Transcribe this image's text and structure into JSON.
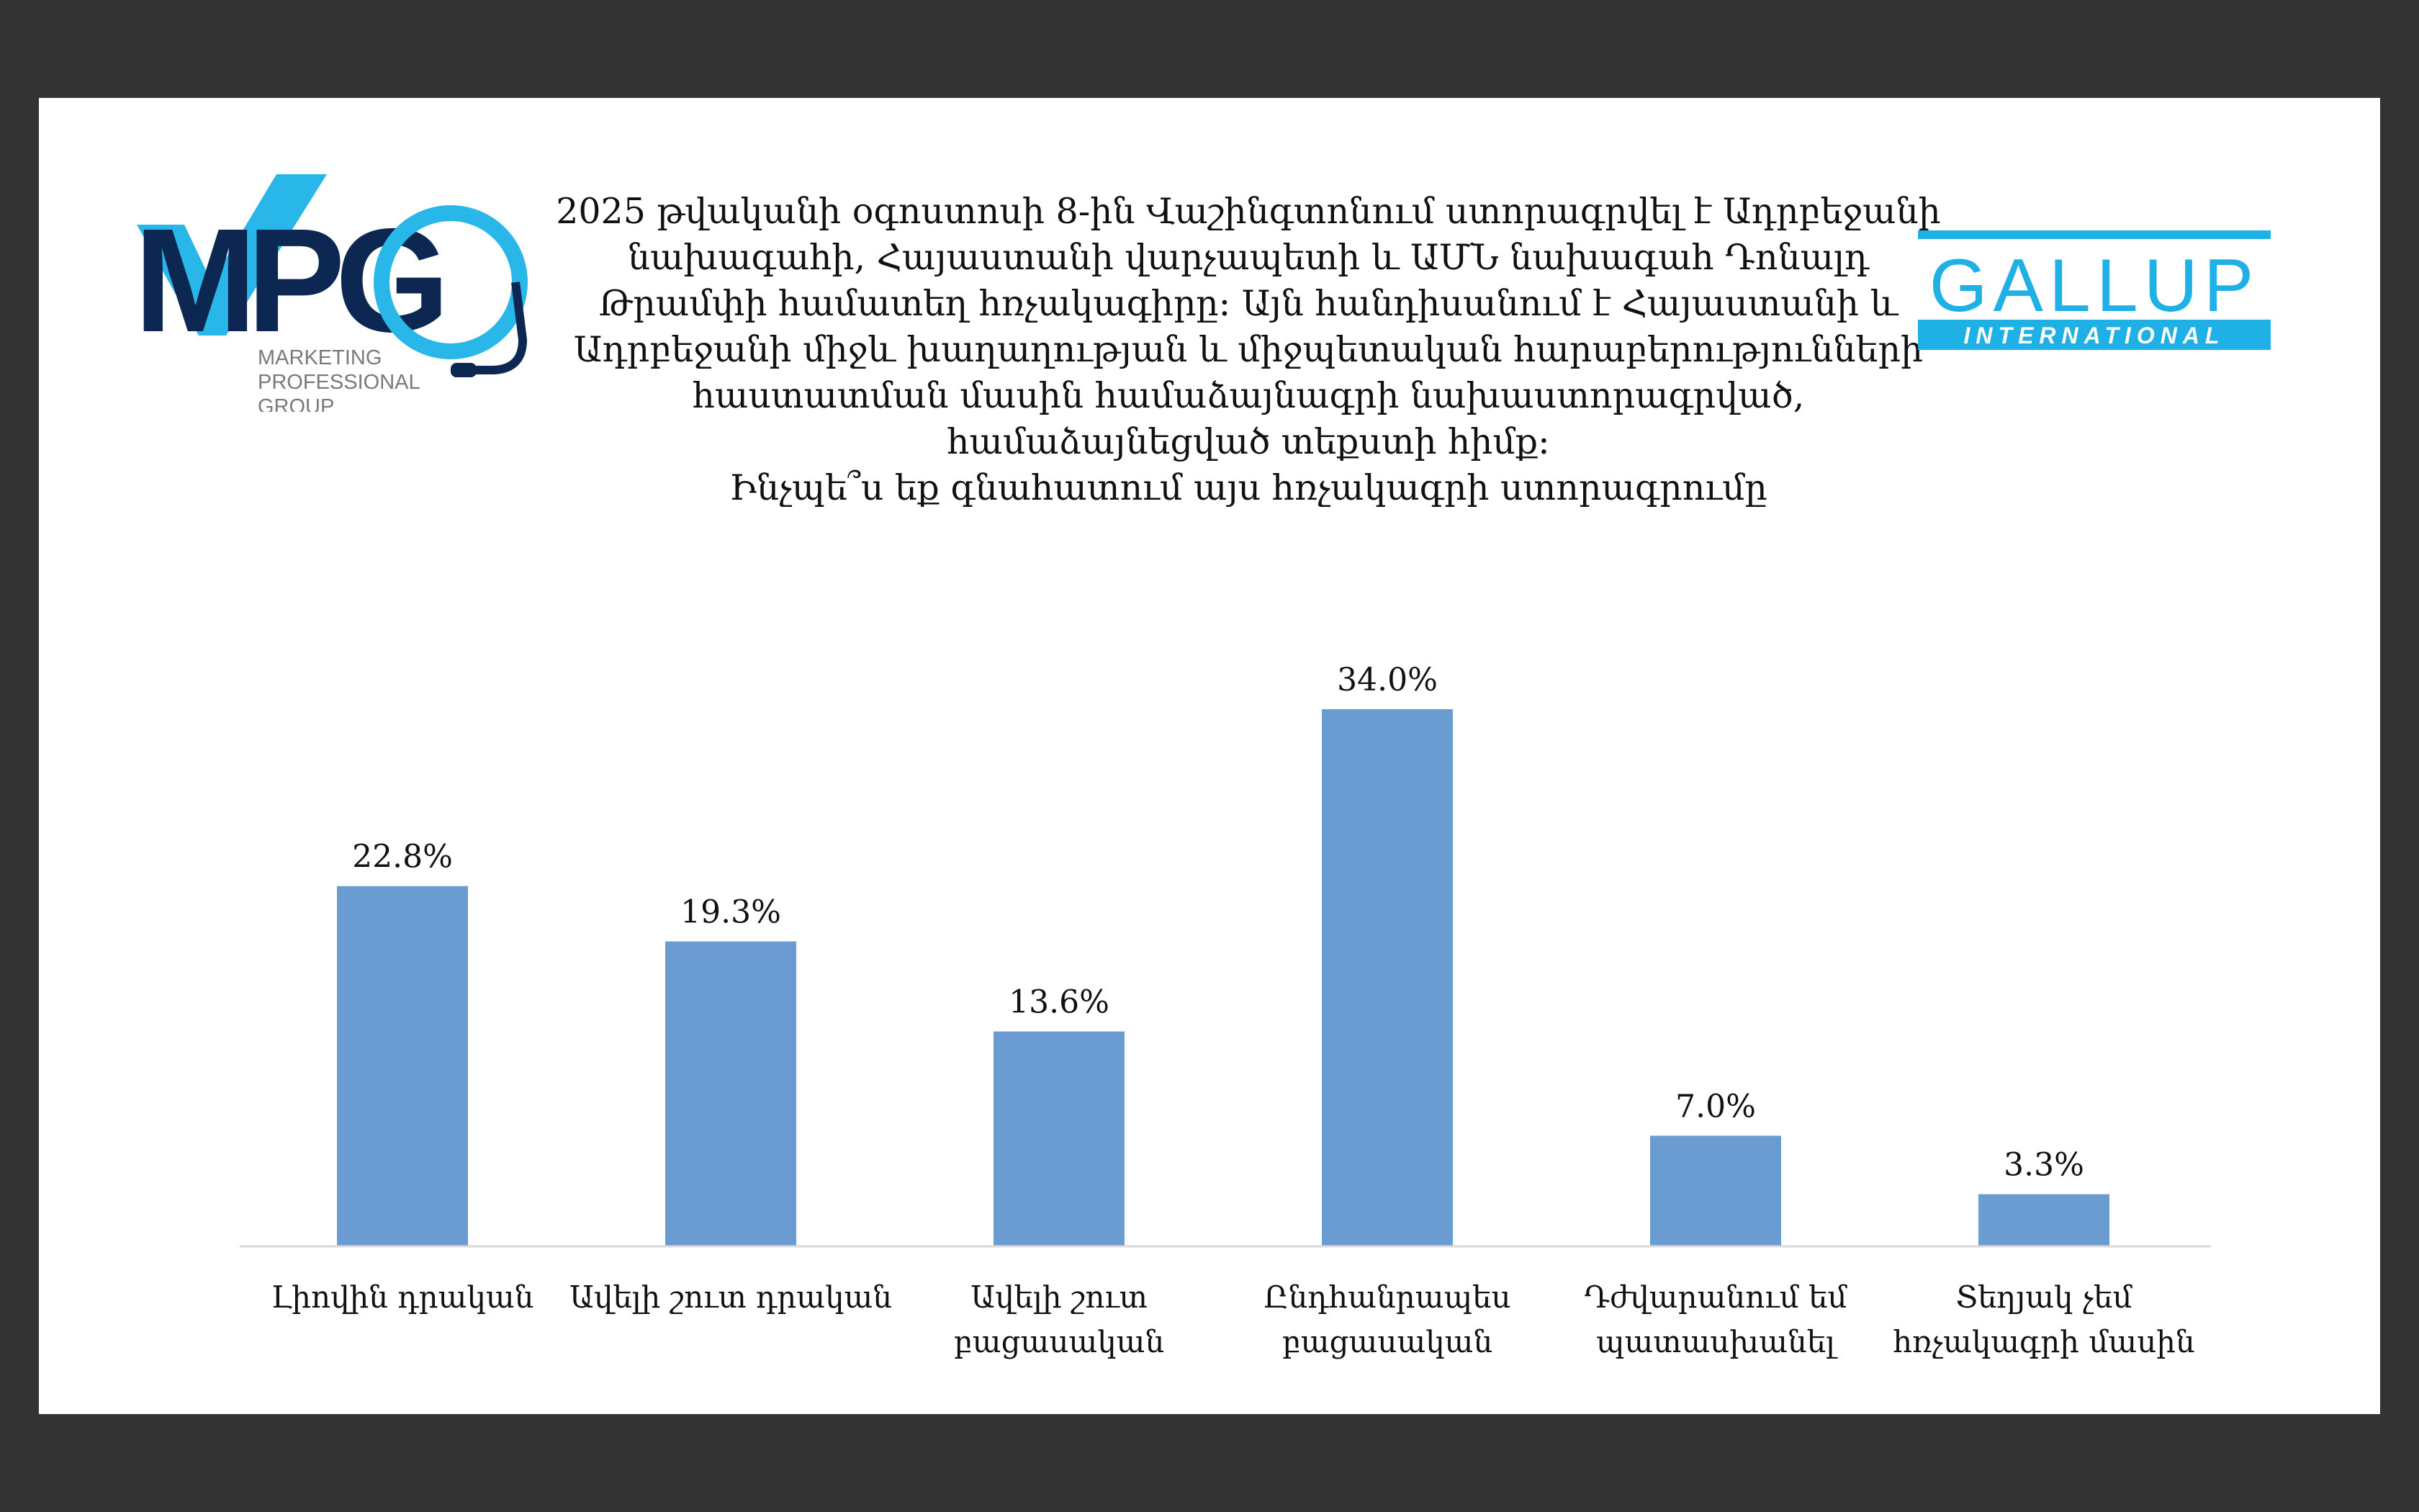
{
  "logos": {
    "mpg": {
      "letters": "MPG",
      "caption_lines": [
        "MARKETING",
        "PROFESSIONAL",
        "GROUP"
      ],
      "colors": {
        "dark": "#0b2752",
        "light": "#29b6e8",
        "caption": "#7a7a7a"
      }
    },
    "gallup": {
      "name": "GALLUP",
      "sub": "INTERNATIONAL",
      "color": "#1fb0e6"
    }
  },
  "title_lines": [
    "2025 թվականի օգոստոսի 8-ին Վաշինգտոնում ստորագրվել է Ադրբեջանի",
    "նախագահի, Հայաստանի  վարչապետի և ԱՄՆ նախագահ Դոնալդ",
    "Թրամփի համատեղ հռչակագիրը։ Այն հանդիսանում է Հայաստանի և",
    "Ադրբեջանի միջև խաղաղության և միջպետական հարաբերությունների",
    "հաստատման մասին համաձայնագրի նախաստորագրված,",
    "համաձայնեցված տեքստի հիմք։",
    "Ինչպե՞ս եք գնահատում այս հռչակագրի ստորագրումը"
  ],
  "chart_data": {
    "type": "bar",
    "categories": [
      [
        "Լիովին դրական"
      ],
      [
        "Ավելի շուտ դրական"
      ],
      [
        "Ավելի շուտ",
        "բացասական"
      ],
      [
        "Ընդհանրապես",
        "բացասական"
      ],
      [
        "Դժվարանում եմ",
        "պատասխանել"
      ],
      [
        "Տեղյակ չեմ",
        "հռչակագրի մասին"
      ]
    ],
    "values": [
      22.8,
      19.3,
      13.6,
      34.0,
      7.0,
      3.3
    ],
    "value_labels": [
      "22.8%",
      "19.3%",
      "13.6%",
      "34.0%",
      "7.0%",
      "3.3%"
    ],
    "bar_color": "#6a9bd1",
    "ylim": [
      0,
      34.0
    ],
    "grid": false,
    "legend": "none"
  }
}
